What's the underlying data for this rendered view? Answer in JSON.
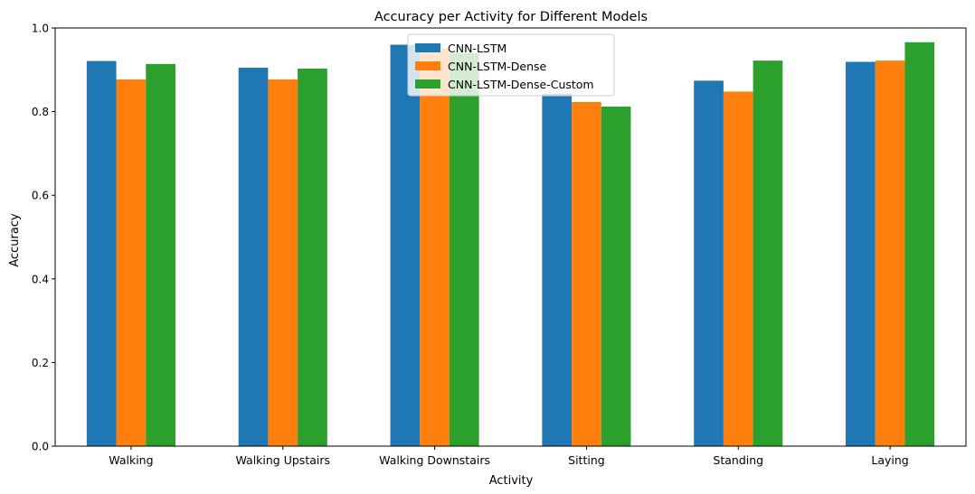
{
  "chart_data": {
    "type": "bar",
    "title": "Accuracy per Activity for Different Models",
    "xlabel": "Activity",
    "ylabel": "Accuracy",
    "ylim": [
      0,
      1.0
    ],
    "yticks": [
      0.0,
      0.2,
      0.4,
      0.6,
      0.8,
      1.0
    ],
    "ytick_labels": [
      "0.0",
      "0.2",
      "0.4",
      "0.6",
      "0.8",
      "1.0"
    ],
    "grid": false,
    "legend_position": "top-center",
    "categories": [
      "Walking",
      "Walking Upstairs",
      "Walking Downstairs",
      "Sitting",
      "Standing",
      "Laying"
    ],
    "series": [
      {
        "name": "CNN-LSTM",
        "color": "#1f77b4",
        "values": [
          0.921,
          0.905,
          0.96,
          0.843,
          0.874,
          0.919
        ]
      },
      {
        "name": "CNN-LSTM-Dense",
        "color": "#ff7f0e",
        "values": [
          0.877,
          0.877,
          0.951,
          0.823,
          0.848,
          0.922
        ]
      },
      {
        "name": "CNN-LSTM-Dense-Custom",
        "color": "#2ca02c",
        "values": [
          0.914,
          0.903,
          0.94,
          0.812,
          0.922,
          0.966
        ]
      }
    ]
  }
}
